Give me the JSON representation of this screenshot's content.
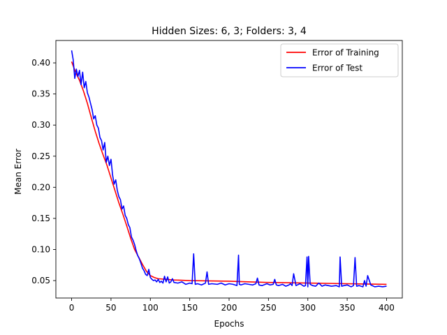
{
  "chart_data": {
    "type": "line",
    "title": "Hidden Sizes: 6, 3; Folders: 3, 4",
    "xlabel": "Epochs",
    "ylabel": "Mean Error",
    "xlim": [
      -20,
      420
    ],
    "ylim": [
      0.022,
      0.436
    ],
    "xticks": [
      0,
      50,
      100,
      150,
      200,
      250,
      300,
      350,
      400
    ],
    "yticks": [
      0.05,
      0.1,
      0.15,
      0.2,
      0.25,
      0.3,
      0.35,
      0.4
    ],
    "ytick_labels": [
      "0.05",
      "0.10",
      "0.15",
      "0.20",
      "0.25",
      "0.30",
      "0.35",
      "0.40"
    ],
    "grid": false,
    "legend_position": "top-right",
    "series": [
      {
        "name": "Error of Training",
        "color": "#ff0000",
        "x": [
          0,
          5,
          10,
          15,
          20,
          25,
          30,
          35,
          40,
          45,
          50,
          55,
          60,
          65,
          70,
          75,
          80,
          85,
          90,
          95,
          100,
          105,
          110,
          120,
          130,
          150,
          200,
          250,
          300,
          350,
          400
        ],
        "y": [
          0.402,
          0.385,
          0.372,
          0.355,
          0.335,
          0.312,
          0.29,
          0.27,
          0.252,
          0.235,
          0.215,
          0.195,
          0.175,
          0.157,
          0.138,
          0.118,
          0.1,
          0.088,
          0.076,
          0.065,
          0.058,
          0.055,
          0.053,
          0.052,
          0.051,
          0.05,
          0.049,
          0.047,
          0.046,
          0.045,
          0.044
        ]
      },
      {
        "name": "Error of Test",
        "color": "#0000ff",
        "x": [
          0,
          2,
          4,
          6,
          8,
          10,
          12,
          14,
          16,
          18,
          20,
          22,
          24,
          26,
          28,
          30,
          32,
          34,
          36,
          38,
          40,
          42,
          44,
          46,
          48,
          50,
          52,
          54,
          56,
          58,
          60,
          62,
          64,
          66,
          68,
          70,
          72,
          74,
          76,
          78,
          80,
          82,
          84,
          86,
          88,
          90,
          92,
          94,
          96,
          98,
          100,
          102,
          104,
          106,
          108,
          110,
          112,
          114,
          116,
          118,
          120,
          122,
          124,
          126,
          128,
          130,
          135,
          140,
          145,
          150,
          153,
          155,
          157,
          160,
          165,
          170,
          172,
          174,
          178,
          185,
          190,
          195,
          200,
          205,
          210,
          212,
          213,
          215,
          220,
          225,
          230,
          234,
          236,
          238,
          242,
          248,
          252,
          256,
          258,
          260,
          263,
          268,
          272,
          276,
          278,
          280,
          282,
          285,
          290,
          295,
          297,
          299,
          300,
          301,
          303,
          306,
          310,
          314,
          318,
          322,
          326,
          330,
          336,
          340,
          341,
          343,
          346,
          350,
          355,
          358,
          360,
          362,
          365,
          370,
          372,
          374,
          376,
          380,
          385,
          390,
          395,
          400
        ],
        "y": [
          0.42,
          0.405,
          0.375,
          0.39,
          0.378,
          0.388,
          0.365,
          0.385,
          0.36,
          0.37,
          0.352,
          0.345,
          0.335,
          0.325,
          0.31,
          0.315,
          0.3,
          0.295,
          0.28,
          0.275,
          0.26,
          0.272,
          0.24,
          0.25,
          0.235,
          0.245,
          0.22,
          0.205,
          0.212,
          0.195,
          0.185,
          0.18,
          0.165,
          0.17,
          0.155,
          0.15,
          0.14,
          0.135,
          0.12,
          0.115,
          0.108,
          0.098,
          0.09,
          0.085,
          0.078,
          0.07,
          0.066,
          0.06,
          0.058,
          0.068,
          0.055,
          0.052,
          0.05,
          0.051,
          0.048,
          0.052,
          0.047,
          0.049,
          0.046,
          0.057,
          0.048,
          0.056,
          0.046,
          0.048,
          0.053,
          0.047,
          0.046,
          0.048,
          0.044,
          0.046,
          0.045,
          0.093,
          0.044,
          0.045,
          0.043,
          0.046,
          0.064,
          0.044,
          0.045,
          0.044,
          0.046,
          0.043,
          0.045,
          0.044,
          0.042,
          0.091,
          0.044,
          0.043,
          0.045,
          0.044,
          0.043,
          0.045,
          0.054,
          0.043,
          0.042,
          0.045,
          0.043,
          0.044,
          0.052,
          0.043,
          0.042,
          0.044,
          0.041,
          0.043,
          0.045,
          0.042,
          0.061,
          0.042,
          0.045,
          0.041,
          0.042,
          0.088,
          0.04,
          0.089,
          0.044,
          0.042,
          0.041,
          0.046,
          0.041,
          0.043,
          0.042,
          0.041,
          0.042,
          0.04,
          0.088,
          0.041,
          0.042,
          0.043,
          0.04,
          0.042,
          0.087,
          0.041,
          0.042,
          0.04,
          0.05,
          0.041,
          0.058,
          0.043,
          0.04,
          0.041,
          0.04,
          0.041
        ]
      }
    ]
  }
}
